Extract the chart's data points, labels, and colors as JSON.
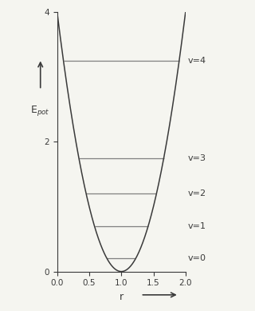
{
  "x_min": 0.0,
  "x_max": 2.0,
  "y_min": 0.0,
  "y_max": 4.0,
  "r0": 1.0,
  "k": 4.0,
  "energy_levels": [
    0.2,
    0.7,
    1.2,
    1.75,
    3.25
  ],
  "level_labels": [
    "v=0",
    "v=1",
    "v=2",
    "v=3",
    "v=4"
  ],
  "xlabel": "r",
  "ylabel": "E$_{pot}$",
  "curve_color": "#3a3a3a",
  "level_color": "#808080",
  "level_linewidth": 0.9,
  "curve_linewidth": 1.1,
  "x_ticks": [
    0.0,
    0.5,
    1.0,
    1.5,
    2.0
  ],
  "y_ticks": [
    0,
    2,
    4
  ],
  "background_color": "#f5f5f0",
  "label_fontsize": 8,
  "tick_fontsize": 7.5,
  "arrow_color": "#3a3a3a"
}
